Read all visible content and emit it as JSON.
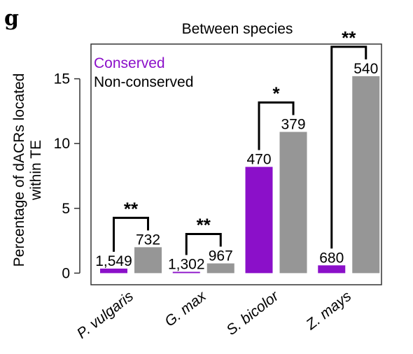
{
  "panel_letter": "g",
  "chart_data": {
    "type": "bar",
    "title": "Between species",
    "ylabel_lines": [
      "Percentage of dACRs located",
      "within TE"
    ],
    "xlabel": "",
    "ylim": [
      0,
      17.6
    ],
    "yticks": [
      0,
      5,
      10,
      15
    ],
    "categories": [
      "P. vulgaris",
      "G. max",
      "S. bicolor",
      "Z. mays"
    ],
    "series": [
      {
        "name": "Conserved",
        "color": "#8B10C9",
        "values": [
          0.35,
          0.1,
          8.2,
          0.6
        ],
        "labels": [
          "1,549",
          "1,302",
          "470",
          "680"
        ]
      },
      {
        "name": "Non-conserved",
        "color": "#969696",
        "values": [
          2.0,
          0.75,
          10.9,
          15.2
        ],
        "labels": [
          "732",
          "967",
          "379",
          "540"
        ]
      }
    ],
    "significance": [
      "**",
      "**",
      "*",
      "**"
    ],
    "legend_position": "top-left",
    "grid": false
  }
}
